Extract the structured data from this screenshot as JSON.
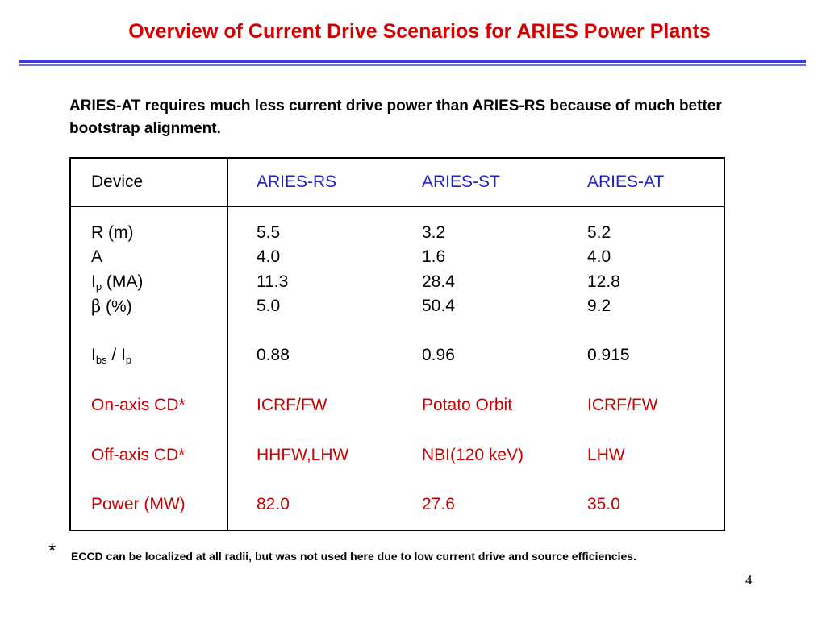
{
  "title": "Overview of Current Drive Scenarios for ARIES Power Plants",
  "intro": "ARIES-AT requires much less current drive power than ARIES-RS because of much better bootstrap alignment.",
  "table": {
    "header": [
      "Device",
      "ARIES-RS",
      "ARIES-ST",
      "ARIES-AT"
    ],
    "rows": [
      {
        "label": "R (m)",
        "values": [
          "5.5",
          "3.2",
          "5.2"
        ]
      },
      {
        "label": "A",
        "values": [
          "4.0",
          "1.6",
          "4.0"
        ]
      },
      {
        "label_main": "I",
        "label_sub": "p",
        "label_rest": " (MA)",
        "values": [
          "11.3",
          "28.4",
          "12.8"
        ]
      },
      {
        "label_symbol": "β",
        "label_rest": " (%)",
        "values": [
          "5.0",
          "50.4",
          "9.2"
        ]
      },
      {
        "label_main": "I",
        "label_sub": "bs",
        "label_mid": " / I",
        "label_sub2": "p",
        "values": [
          "0.88",
          "0.96",
          "0.915"
        ]
      },
      {
        "label": "On-axis CD*",
        "values": [
          "ICRF/FW",
          "Potato Orbit",
          "ICRF/FW"
        ]
      },
      {
        "label": "Off-axis CD*",
        "values": [
          "HHFW,LHW",
          "NBI(120 keV)",
          "LHW"
        ]
      },
      {
        "label": "Power (MW)",
        "values": [
          "82.0",
          "27.6",
          "35.0"
        ]
      }
    ]
  },
  "footnote_marker": "*",
  "footnote": "ECCD can be localized at all radii, but was not used here due to low current drive and source efficiencies.",
  "page_number": "4"
}
